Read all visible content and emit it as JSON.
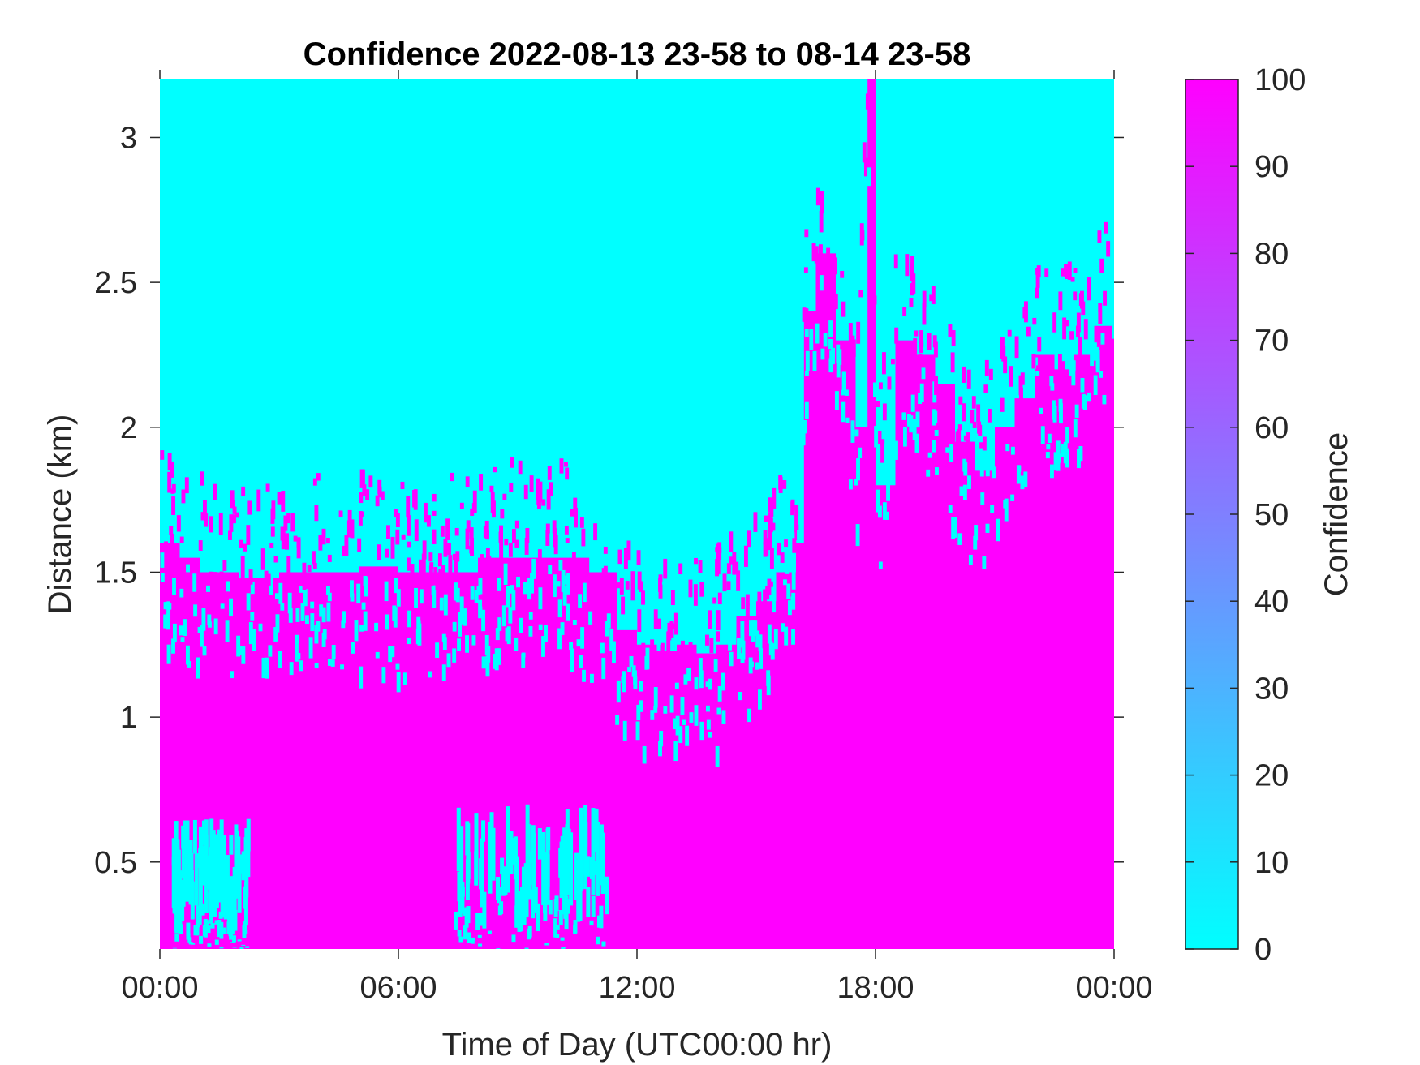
{
  "colors": {
    "low": "#00ffff",
    "high": "#ff00ff",
    "axis": "#262626"
  },
  "chart_data": {
    "type": "heatmap",
    "title": "Confidence 2022-08-13 23-58 to 08-14 23-58",
    "xlabel": "Time of Day (UTC00:00 hr)",
    "ylabel": "Distance (km)",
    "colorbar_label": "Confidence",
    "colormap": "cool",
    "x_unit": "hours",
    "xlim": [
      0,
      24
    ],
    "ylim": [
      0.2,
      3.2
    ],
    "clim": [
      0,
      100
    ],
    "x_ticks": [
      0,
      6,
      12,
      18,
      24
    ],
    "x_tick_labels": [
      "00:00",
      "06:00",
      "12:00",
      "18:00",
      "00:00"
    ],
    "y_ticks": [
      0.5,
      1,
      1.5,
      2,
      2.5,
      3
    ],
    "y_tick_labels": [
      "0.5",
      "1",
      "1.5",
      "2",
      "2.5",
      "3"
    ],
    "colorbar_ticks": [
      0,
      10,
      20,
      30,
      40,
      50,
      60,
      70,
      80,
      90,
      100
    ],
    "colorbar_tick_labels": [
      "0",
      "10",
      "20",
      "30",
      "40",
      "50",
      "60",
      "70",
      "80",
      "90",
      "100"
    ],
    "high_confidence_top_km": {
      "hours": [
        0,
        0.5,
        1,
        1.5,
        2,
        3,
        4,
        5,
        6,
        7,
        8,
        9,
        10,
        10.8,
        11.5,
        12,
        12.5,
        13,
        13.5,
        14,
        14.5,
        15,
        15.5,
        16,
        16.2,
        16.5,
        17,
        17.5,
        17.8,
        18,
        18.5,
        19,
        19.5,
        20,
        20.5,
        21,
        21.5,
        22,
        22.5,
        23,
        23.5,
        24
      ],
      "values": [
        1.6,
        1.55,
        1.5,
        1.5,
        1.48,
        1.5,
        1.5,
        1.52,
        1.5,
        1.5,
        1.55,
        1.55,
        1.55,
        1.5,
        1.3,
        1.25,
        1.23,
        1.25,
        1.22,
        1.25,
        1.35,
        1.4,
        1.5,
        1.6,
        2.4,
        2.6,
        2.3,
        2.0,
        3.2,
        1.8,
        2.3,
        2.25,
        2.15,
        1.95,
        1.85,
        2.0,
        2.1,
        2.25,
        2.2,
        2.25,
        2.35,
        2.4
      ]
    },
    "low_confidence_patches": [
      {
        "hours": [
          0.3,
          2.2
        ],
        "km": [
          0.2,
          0.65
        ]
      },
      {
        "hours": [
          7.4,
          11.2
        ],
        "km": [
          0.2,
          0.7
        ]
      }
    ]
  }
}
